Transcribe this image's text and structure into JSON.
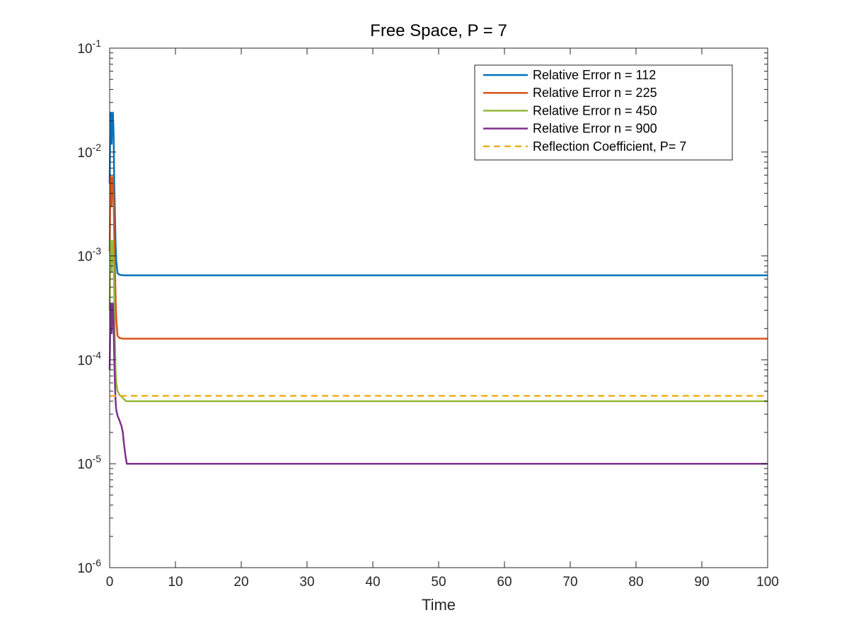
{
  "chart_data": {
    "type": "line",
    "title": "Free Space, P = 7",
    "xlabel": "Time",
    "ylabel": "",
    "xlim": [
      0,
      100
    ],
    "ylim": [
      1e-06,
      0.1
    ],
    "yscale": "log",
    "x_ticks": [
      0,
      10,
      20,
      30,
      40,
      50,
      60,
      70,
      80,
      90,
      100
    ],
    "y_ticks": [
      {
        "value": 1e-06,
        "base": "10",
        "exp": "-6"
      },
      {
        "value": 1e-05,
        "base": "10",
        "exp": "-5"
      },
      {
        "value": 0.0001,
        "base": "10",
        "exp": "-4"
      },
      {
        "value": 0.001,
        "base": "10",
        "exp": "-3"
      },
      {
        "value": 0.01,
        "base": "10",
        "exp": "-2"
      },
      {
        "value": 0.1,
        "base": "10",
        "exp": "-1"
      }
    ],
    "grid": false,
    "legend_position": "top-right",
    "series": [
      {
        "name": "Relative Error n = 112",
        "color": "#0072BD",
        "dash": "solid",
        "x": [
          0,
          0.1,
          0.2,
          0.3,
          0.4,
          0.5,
          0.6,
          0.7,
          0.8,
          0.9,
          1.0,
          1.2,
          1.5,
          2,
          5,
          20,
          50,
          100
        ],
        "y": [
          0.005,
          0.02,
          0.024,
          0.012,
          0.022,
          0.024,
          0.015,
          0.005,
          0.0025,
          0.0013,
          0.0009,
          0.00068,
          0.00066,
          0.00065,
          0.00065,
          0.00065,
          0.00065,
          0.00065
        ]
      },
      {
        "name": "Relative Error n = 225",
        "color": "#D95319",
        "dash": "solid",
        "x": [
          0,
          0.1,
          0.2,
          0.3,
          0.4,
          0.5,
          0.6,
          0.7,
          0.8,
          0.9,
          1.0,
          1.2,
          1.5,
          2,
          5,
          20,
          50,
          100
        ],
        "y": [
          0.0011,
          0.004,
          0.0058,
          0.003,
          0.0055,
          0.0058,
          0.004,
          0.0014,
          0.0008,
          0.0004,
          0.00025,
          0.00017,
          0.000162,
          0.00016,
          0.00016,
          0.00016,
          0.00016,
          0.00016
        ]
      },
      {
        "name": "Relative Error n = 450",
        "color": "#93B93A",
        "dash": "solid",
        "x": [
          0,
          0.1,
          0.2,
          0.3,
          0.4,
          0.5,
          0.6,
          0.7,
          0.8,
          0.9,
          1.0,
          1.2,
          1.5,
          2,
          2.5,
          3,
          5,
          20,
          50,
          100
        ],
        "y": [
          0.0003,
          0.001,
          0.0014,
          0.0007,
          0.0013,
          0.0014,
          0.0009,
          0.0004,
          0.00015,
          8e-05,
          6e-05,
          5e-05,
          4.6e-05,
          4.3e-05,
          4e-05,
          4e-05,
          4e-05,
          4e-05,
          4e-05,
          4e-05
        ]
      },
      {
        "name": "Relative Error n = 900",
        "color": "#7E2F8E",
        "dash": "solid",
        "x": [
          0,
          0.1,
          0.2,
          0.3,
          0.4,
          0.5,
          0.6,
          0.7,
          0.8,
          0.9,
          1.0,
          1.2,
          1.5,
          1.8,
          2.0,
          2.2,
          2.4,
          2.6,
          2.8,
          3.0,
          5,
          20,
          50,
          100
        ],
        "y": [
          8e-05,
          0.00025,
          0.00035,
          0.00018,
          0.00033,
          0.00035,
          0.00022,
          0.0001,
          6e-05,
          4e-05,
          3.3e-05,
          2.9e-05,
          2.6e-05,
          2.3e-05,
          2e-05,
          1.5e-05,
          1.2e-05,
          1e-05,
          1e-05,
          1e-05,
          1e-05,
          1e-05,
          1e-05,
          1e-05
        ]
      },
      {
        "name": "Reflection Coefficient, P= 7",
        "color": "#EDB120",
        "dash": "dashed",
        "x": [
          0,
          100
        ],
        "y": [
          4.5e-05,
          4.5e-05
        ]
      }
    ]
  }
}
